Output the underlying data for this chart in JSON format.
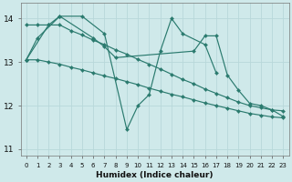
{
  "xlabel": "Humidex (Indice chaleur)",
  "bg_color": "#cfe9ea",
  "grid_color": "#b8d8da",
  "line_color": "#2a7a6e",
  "xlim": [
    -0.5,
    23.5
  ],
  "ylim": [
    10.85,
    14.35
  ],
  "yticks": [
    11,
    12,
    13,
    14
  ],
  "xticks": [
    0,
    1,
    2,
    3,
    4,
    5,
    6,
    7,
    8,
    9,
    10,
    11,
    12,
    13,
    14,
    15,
    16,
    17,
    18,
    19,
    20,
    21,
    22,
    23
  ],
  "series": [
    {
      "x": [
        0,
        1,
        2,
        3,
        4,
        5,
        6,
        7,
        8,
        9,
        10,
        11,
        12,
        13,
        14,
        15,
        16,
        17,
        18,
        19,
        20,
        21,
        22,
        23
      ],
      "y": [
        13.85,
        13.85,
        13.85,
        13.85,
        13.72,
        13.62,
        13.5,
        13.4,
        13.28,
        13.18,
        13.06,
        12.95,
        12.84,
        12.72,
        12.6,
        12.5,
        12.38,
        12.28,
        12.18,
        12.08,
        12.0,
        11.95,
        11.9,
        11.88
      ]
    },
    {
      "x": [
        0,
        1,
        2,
        3,
        4,
        5,
        6,
        7,
        8,
        9,
        10,
        11,
        12,
        13,
        14,
        15,
        16,
        17,
        18,
        19,
        20,
        21,
        22,
        23
      ],
      "y": [
        13.05,
        13.05,
        13.0,
        12.95,
        12.88,
        12.82,
        12.75,
        12.68,
        12.62,
        12.55,
        12.48,
        12.4,
        12.33,
        12.26,
        12.2,
        12.13,
        12.06,
        12.0,
        11.94,
        11.88,
        11.82,
        11.78,
        11.74,
        11.72
      ]
    },
    {
      "x": [
        0,
        1,
        3,
        5,
        7,
        9,
        10,
        11,
        12,
        13,
        14,
        16,
        17
      ],
      "y": [
        13.05,
        13.55,
        14.05,
        14.05,
        13.65,
        11.45,
        12.0,
        12.25,
        13.25,
        14.0,
        13.65,
        13.4,
        12.75
      ]
    },
    {
      "x": [
        0,
        2,
        3,
        6,
        7,
        8,
        15,
        16,
        17,
        18,
        19,
        20,
        21,
        22,
        23
      ],
      "y": [
        13.05,
        13.85,
        14.05,
        13.55,
        13.35,
        13.1,
        13.25,
        13.6,
        13.6,
        12.7,
        12.35,
        12.05,
        12.0,
        11.9,
        11.75
      ]
    }
  ]
}
